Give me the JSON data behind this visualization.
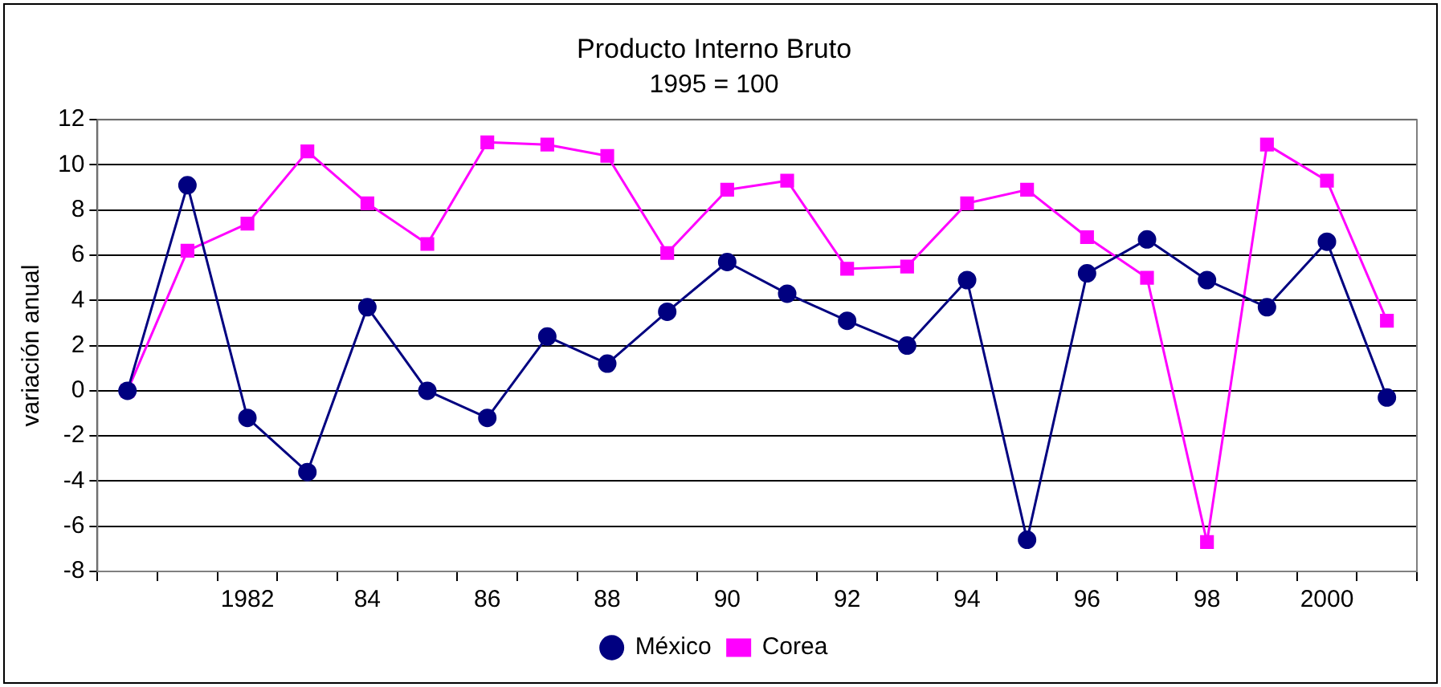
{
  "chart_data": {
    "type": "line",
    "title": "Producto Interno Bruto",
    "subtitle": "1995 = 100",
    "ylabel": "variación anual",
    "categories": [
      null,
      null,
      "1982",
      null,
      "84",
      null,
      "86",
      null,
      "88",
      null,
      "90",
      null,
      "92",
      null,
      "94",
      null,
      "96",
      null,
      "98",
      null,
      "2000",
      null
    ],
    "series": [
      {
        "name": "México",
        "color": "#000080",
        "marker": "circle",
        "values": [
          0,
          9.1,
          -1.2,
          -3.6,
          3.7,
          0,
          -1.2,
          2.4,
          1.2,
          3.5,
          5.7,
          4.3,
          3.1,
          2.0,
          4.9,
          -6.6,
          5.2,
          6.7,
          4.9,
          3.7,
          6.6,
          -0.3
        ]
      },
      {
        "name": "Corea",
        "color": "#ff00ff",
        "marker": "square",
        "values": [
          0,
          6.2,
          7.4,
          10.6,
          8.3,
          6.5,
          11.0,
          10.9,
          10.4,
          6.1,
          8.9,
          9.3,
          5.4,
          5.5,
          8.3,
          8.9,
          6.8,
          5.0,
          -6.7,
          10.9,
          9.3,
          3.1
        ]
      }
    ],
    "ylim": [
      -8,
      12
    ],
    "yticks": [
      -8,
      -6,
      -4,
      -2,
      0,
      2,
      4,
      6,
      8,
      10,
      12
    ],
    "grid": "y",
    "legend": "bottom"
  }
}
